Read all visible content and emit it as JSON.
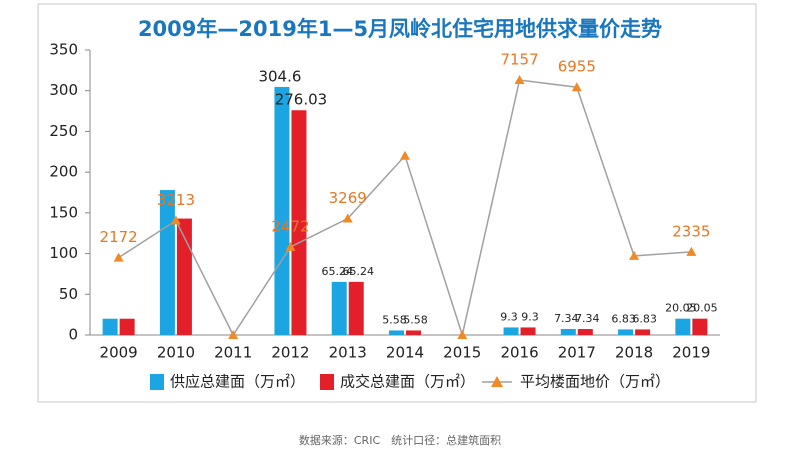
{
  "chart_data": {
    "type": "bar_line",
    "title": "2009年—2019年1—5月凤岭北住宅用地供求量价走势",
    "categories": [
      "2009",
      "2010",
      "2011",
      "2012",
      "2013",
      "2014",
      "2015",
      "2016",
      "2017",
      "2018",
      "2019"
    ],
    "series": [
      {
        "name": "供应总建面（万㎡）",
        "type": "bar",
        "color": "#1ba5e2",
        "values": [
          20,
          178,
          0,
          304.6,
          65.24,
          5.58,
          0,
          9.3,
          7.34,
          6.83,
          20.05
        ],
        "value_labels": [
          null,
          null,
          null,
          "304.6",
          "65.24",
          "5.58",
          null,
          "9.3",
          "7.34",
          "6.83",
          "20.05"
        ]
      },
      {
        "name": "成交总建面（万㎡）",
        "type": "bar",
        "color": "#e3202a",
        "values": [
          20,
          143,
          0,
          276.03,
          65.24,
          5.58,
          0,
          9.3,
          7.34,
          6.83,
          20.05
        ],
        "value_labels": [
          null,
          null,
          null,
          "276.03",
          "65.24",
          "5.58",
          null,
          "9.3",
          "7.34",
          "6.83",
          "20.05"
        ]
      },
      {
        "name": "平均楼面地价（万㎡）",
        "type": "line",
        "axis": "y2",
        "color": "#a0a0a0",
        "marker_color": "#f08a24",
        "values": [
          2172,
          3213,
          0,
          2472,
          3269,
          5030,
          0,
          7157,
          6955,
          2220,
          2335
        ],
        "value_labels": [
          "2172",
          "3213",
          null,
          "2472",
          "3269",
          null,
          null,
          "7157",
          "6955",
          null,
          "2335"
        ]
      }
    ],
    "ylim": [
      0,
      350
    ],
    "yticks": [
      0,
      50,
      100,
      150,
      200,
      250,
      300,
      350
    ],
    "y2lim": [
      0,
      8000
    ],
    "legend": "bottom",
    "source": "数据来源：CRIC　统计口径：总建筑面积"
  }
}
